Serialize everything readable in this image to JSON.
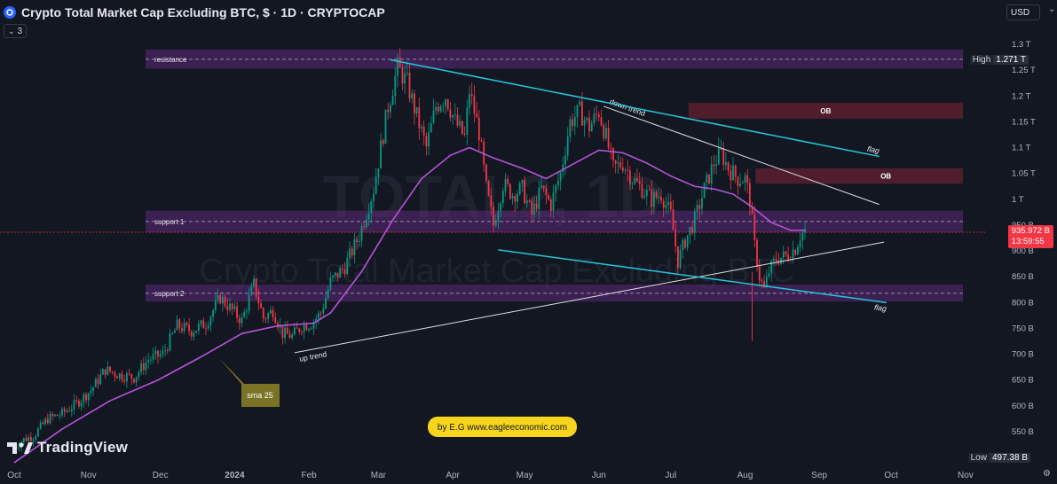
{
  "header": {
    "title": "Crypto Total Market Cap Excluding BTC, $ · 1D · CRYPTOCAP",
    "indicator_count": "3",
    "currency": "USD"
  },
  "branding": {
    "logo_text": "TradingView"
  },
  "watermark": {
    "symbol": "TOTAL2, 1D",
    "description": "Crypto Total Market Cap Excluding BTC"
  },
  "colors": {
    "up": "#089981",
    "down": "#f23645",
    "sma": "#b454d6",
    "zone": "#5c2a78",
    "ob": "#5a1e2e",
    "flag": "#26c6da",
    "trend": "#e0e0e0",
    "badge": "#f7d51d"
  },
  "price_badges": {
    "high_label": "High",
    "high_value": "1.271 T",
    "low_label": "Low",
    "low_value": "497.38 B",
    "last_value": "935.972 B",
    "countdown": "13:59:55"
  },
  "chart_data": {
    "type": "candlestick",
    "y_axis": {
      "min": 0.49,
      "max": 1.32,
      "unit": "T",
      "ticks": [
        {
          "v": 1.3,
          "label": "1.3 T"
        },
        {
          "v": 1.25,
          "label": "1.25 T"
        },
        {
          "v": 1.2,
          "label": "1.2 T"
        },
        {
          "v": 1.15,
          "label": "1.15 T"
        },
        {
          "v": 1.1,
          "label": "1.1 T"
        },
        {
          "v": 1.05,
          "label": "1.05 T"
        },
        {
          "v": 1.0,
          "label": "1 T"
        },
        {
          "v": 0.95,
          "label": "950 B"
        },
        {
          "v": 0.9,
          "label": "900 B"
        },
        {
          "v": 0.85,
          "label": "850 B"
        },
        {
          "v": 0.8,
          "label": "800 B"
        },
        {
          "v": 0.75,
          "label": "750 B"
        },
        {
          "v": 0.7,
          "label": "700 B"
        },
        {
          "v": 0.65,
          "label": "650 B"
        },
        {
          "v": 0.6,
          "label": "600 B"
        },
        {
          "v": 0.55,
          "label": "550 B"
        }
      ]
    },
    "x_axis": {
      "ticks": [
        {
          "t": 0,
          "label": "Oct"
        },
        {
          "t": 31,
          "label": "Nov"
        },
        {
          "t": 61,
          "label": "Dec"
        },
        {
          "t": 92,
          "label": "2024"
        },
        {
          "t": 123,
          "label": "Feb"
        },
        {
          "t": 152,
          "label": "Mar"
        },
        {
          "t": 183,
          "label": "Apr"
        },
        {
          "t": 213,
          "label": "May"
        },
        {
          "t": 244,
          "label": "Jun"
        },
        {
          "t": 274,
          "label": "Jul"
        },
        {
          "t": 305,
          "label": "Aug"
        },
        {
          "t": 336,
          "label": "Sep"
        },
        {
          "t": 366,
          "label": "Oct"
        },
        {
          "t": 397,
          "label": "Nov"
        }
      ]
    },
    "series": [
      {
        "name": "sma 25",
        "type": "line"
      }
    ],
    "anchors": [
      [
        0,
        0.52
      ],
      [
        4,
        0.535
      ],
      [
        8,
        0.542
      ],
      [
        14,
        0.575
      ],
      [
        20,
        0.585
      ],
      [
        26,
        0.605
      ],
      [
        32,
        0.63
      ],
      [
        38,
        0.67
      ],
      [
        44,
        0.66
      ],
      [
        50,
        0.655
      ],
      [
        56,
        0.69
      ],
      [
        62,
        0.7
      ],
      [
        68,
        0.755
      ],
      [
        74,
        0.745
      ],
      [
        80,
        0.76
      ],
      [
        86,
        0.81
      ],
      [
        90,
        0.79
      ],
      [
        95,
        0.765
      ],
      [
        100,
        0.835
      ],
      [
        104,
        0.77
      ],
      [
        108,
        0.785
      ],
      [
        112,
        0.74
      ],
      [
        116,
        0.735
      ],
      [
        120,
        0.755
      ],
      [
        124,
        0.76
      ],
      [
        128,
        0.78
      ],
      [
        132,
        0.84
      ],
      [
        138,
        0.87
      ],
      [
        144,
        0.93
      ],
      [
        150,
        1.02
      ],
      [
        156,
        1.18
      ],
      [
        160,
        1.255
      ],
      [
        164,
        1.225
      ],
      [
        168,
        1.16
      ],
      [
        172,
        1.1
      ],
      [
        176,
        1.18
      ],
      [
        180,
        1.2
      ],
      [
        184,
        1.15
      ],
      [
        188,
        1.12
      ],
      [
        190,
        1.21
      ],
      [
        194,
        1.13
      ],
      [
        197,
        1.02
      ],
      [
        200,
        0.95
      ],
      [
        204,
        1.03
      ],
      [
        208,
        1.01
      ],
      [
        212,
        1.02
      ],
      [
        216,
        0.97
      ],
      [
        220,
        1.02
      ],
      [
        224,
        0.99
      ],
      [
        228,
        1.05
      ],
      [
        232,
        1.15
      ],
      [
        236,
        1.17
      ],
      [
        240,
        1.14
      ],
      [
        244,
        1.17
      ],
      [
        247,
        1.12
      ],
      [
        250,
        1.06
      ],
      [
        254,
        1.07
      ],
      [
        258,
        1.04
      ],
      [
        262,
        1.02
      ],
      [
        266,
        1.0
      ],
      [
        270,
        1.01
      ],
      [
        274,
        0.97
      ],
      [
        277,
        0.88
      ],
      [
        280,
        0.92
      ],
      [
        284,
        0.96
      ],
      [
        288,
        1.02
      ],
      [
        292,
        1.07
      ],
      [
        295,
        1.09
      ],
      [
        298,
        1.06
      ],
      [
        302,
        1.04
      ],
      [
        305,
        1.04
      ],
      [
        307,
        1.0
      ],
      [
        309,
        0.91
      ],
      [
        311,
        0.85
      ],
      [
        313,
        0.825
      ],
      [
        315,
        0.86
      ],
      [
        318,
        0.885
      ],
      [
        322,
        0.89
      ],
      [
        326,
        0.905
      ],
      [
        328,
        0.93
      ],
      [
        330,
        0.94
      ]
    ],
    "sma": [
      [
        0,
        0.49
      ],
      [
        20,
        0.555
      ],
      [
        40,
        0.61
      ],
      [
        60,
        0.65
      ],
      [
        78,
        0.695
      ],
      [
        95,
        0.74
      ],
      [
        110,
        0.755
      ],
      [
        125,
        0.76
      ],
      [
        132,
        0.78
      ],
      [
        145,
        0.86
      ],
      [
        158,
        0.96
      ],
      [
        170,
        1.04
      ],
      [
        182,
        1.085
      ],
      [
        190,
        1.1
      ],
      [
        200,
        1.08
      ],
      [
        212,
        1.06
      ],
      [
        222,
        1.04
      ],
      [
        232,
        1.065
      ],
      [
        244,
        1.095
      ],
      [
        254,
        1.09
      ],
      [
        264,
        1.07
      ],
      [
        274,
        1.045
      ],
      [
        284,
        1.025
      ],
      [
        292,
        1.02
      ],
      [
        300,
        1.01
      ],
      [
        308,
        0.985
      ],
      [
        316,
        0.955
      ],
      [
        324,
        0.94
      ],
      [
        330,
        0.94
      ]
    ],
    "zones": [
      {
        "label": "resistance",
        "from": 1.253,
        "to": 1.29,
        "mid": 1.271
      },
      {
        "label": "support 1",
        "from": 0.936,
        "to": 0.978,
        "mid": 0.957
      },
      {
        "label": "support 2",
        "from": 0.802,
        "to": 0.835,
        "mid": 0.818
      }
    ],
    "order_blocks": [
      {
        "label": "OB",
        "t0": 274,
        "t1": 398,
        "from": 1.156,
        "to": 1.187
      },
      {
        "label": "OB",
        "t0": 302,
        "t1": 398,
        "from": 1.03,
        "to": 1.06
      }
    ],
    "trendlines": [
      {
        "label": "down trend",
        "t0": 246,
        "v0": 1.18,
        "t1": 361,
        "v1": 0.99,
        "color": "trend"
      },
      {
        "label": "up trend",
        "t0": 117,
        "v0": 0.703,
        "t1": 363,
        "v1": 0.917,
        "color": "trend"
      },
      {
        "label": "flag",
        "t0": 157,
        "v0": 1.27,
        "t1": 361,
        "v1": 1.083,
        "color": "flag"
      },
      {
        "label": "flag",
        "t0": 202,
        "v0": 0.902,
        "t1": 364,
        "v1": 0.8,
        "color": "flag"
      }
    ],
    "annotations": [
      {
        "text": "sma 25",
        "type": "callout"
      },
      {
        "text": "by E.G www.eagleeconomic.com",
        "type": "banner"
      }
    ],
    "last_price": 0.936,
    "high": 1.271,
    "low": 0.497
  }
}
